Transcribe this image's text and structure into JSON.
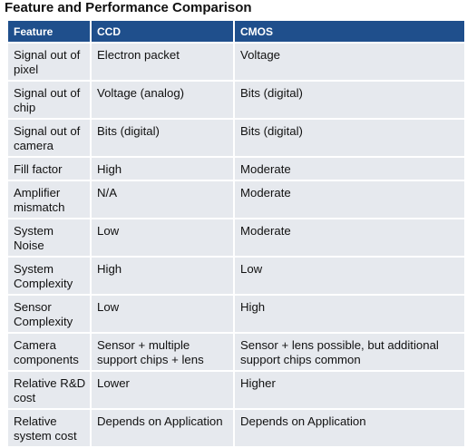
{
  "title": "Feature and Performance Comparison",
  "table": {
    "headers": [
      "Feature",
      "CCD",
      "CMOS"
    ],
    "rows": [
      {
        "feature": "Signal out of pixel",
        "ccd": "Electron packet",
        "cmos": "Voltage"
      },
      {
        "feature": "Signal out of chip",
        "ccd": "Voltage (analog)",
        "cmos": "Bits (digital)"
      },
      {
        "feature": "Signal out of camera",
        "ccd": "Bits (digital)",
        "cmos": "Bits (digital)"
      },
      {
        "feature": "Fill factor",
        "ccd": "High",
        "cmos": "Moderate"
      },
      {
        "feature": "Amplifier mismatch",
        "ccd": "N/A",
        "cmos": "Moderate"
      },
      {
        "feature": "System Noise",
        "ccd": "Low",
        "cmos": "Moderate"
      },
      {
        "feature": "System Complexity",
        "ccd": "High",
        "cmos": "Low"
      },
      {
        "feature": "Sensor Complexity",
        "ccd": "Low",
        "cmos": "High"
      },
      {
        "feature": "Camera components",
        "ccd": "Sensor + multiple support chips + lens",
        "cmos": "Sensor + lens possible, but additional support chips common"
      },
      {
        "feature": "Relative R&D cost",
        "ccd": "Lower",
        "cmos": "Higher"
      },
      {
        "feature": "Relative system cost",
        "ccd": "Depends on Application",
        "cmos": "Depends on Application"
      }
    ]
  },
  "colors": {
    "header_bg": "#1f4f8c",
    "header_text": "#ffffff",
    "row_bg": "#e6e9ee"
  }
}
